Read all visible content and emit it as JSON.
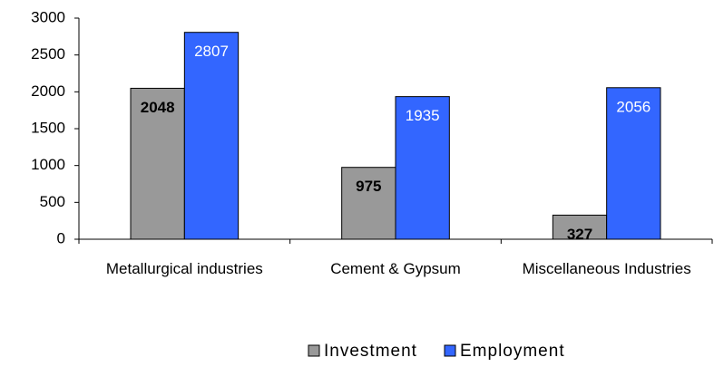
{
  "chart_data": {
    "type": "bar",
    "categories": [
      "Metallurgical industries",
      "Cement & Gypsum",
      "Miscellaneous Industries"
    ],
    "series": [
      {
        "name": "Investment",
        "color": "#999999",
        "values": [
          2048,
          975,
          327
        ]
      },
      {
        "name": "Employment",
        "color": "#3366ff",
        "values": [
          2807,
          1935,
          2056
        ]
      }
    ],
    "ylim": [
      0,
      3000
    ],
    "yticks": [
      0,
      500,
      1000,
      1500,
      2000,
      2500,
      3000
    ],
    "grid": false,
    "legend": "bottom"
  }
}
